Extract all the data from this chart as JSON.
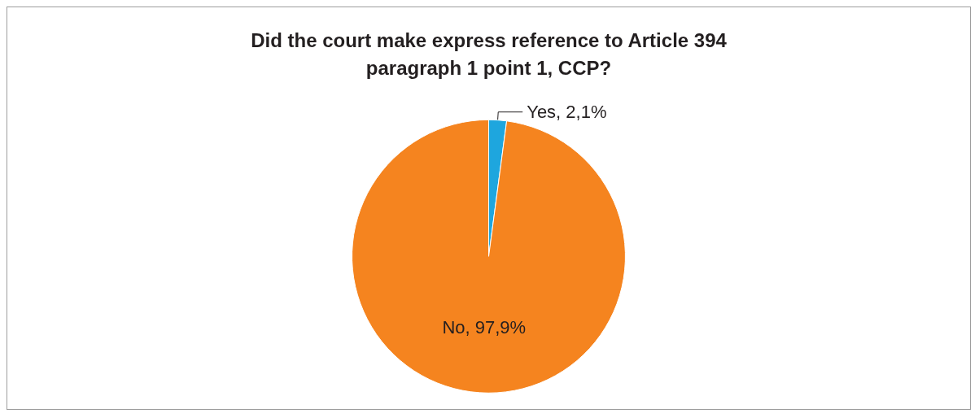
{
  "chart_data": {
    "type": "pie",
    "title": "Did the court make express reference to Article 394\nparagraph 1 point 1, CCP?",
    "categories": [
      "Yes",
      "No"
    ],
    "values": [
      2.1,
      97.9
    ],
    "colors": [
      "#1ea6de",
      "#f5841f"
    ],
    "value_labels": [
      "2,1%",
      "97,9%"
    ],
    "legend": false
  }
}
